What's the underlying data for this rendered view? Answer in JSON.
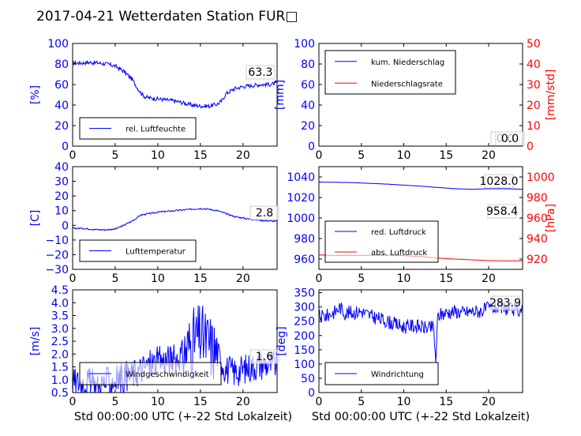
{
  "title": "2017-04-21 Wetterdaten Station FUR□",
  "xlabel": "Std 00:00:00 UTC (+-22 Std Lokalzeit)",
  "colors": {
    "blue": "#0000ff",
    "red": "#ff0000",
    "black": "#000000"
  },
  "chart_data": [
    {
      "id": "humidity",
      "type": "line",
      "ylabel": "[%]",
      "xlim": [
        0,
        24
      ],
      "ylim": [
        0,
        100
      ],
      "xticks": [
        "0",
        "5",
        "10",
        "15",
        "20"
      ],
      "yticks": [
        "0",
        "20",
        "40",
        "60",
        "80",
        "100"
      ],
      "annotations": [
        "63.3"
      ],
      "legend": "bottom-left",
      "series": [
        {
          "name": "rel. Luftfeuchte",
          "color": "#0000ff",
          "noise": 2,
          "x": [
            0,
            1,
            2,
            3,
            4,
            5,
            6,
            7,
            7.5,
            8,
            8.5,
            9,
            10,
            11,
            12,
            13,
            14,
            15,
            16,
            17,
            17.5,
            18,
            19,
            20,
            21,
            22,
            23,
            24
          ],
          "y": [
            81,
            81,
            81.5,
            81,
            80,
            78,
            73,
            65,
            58,
            52,
            48,
            47,
            46,
            45,
            44,
            42,
            40,
            39,
            39,
            41,
            44,
            51,
            56,
            58,
            59,
            60,
            60,
            61
          ]
        }
      ]
    },
    {
      "id": "precip",
      "type": "line",
      "ylabel": "[mm]",
      "ylabel2": "[mm/std]",
      "xlim": [
        0,
        24
      ],
      "ylim": [
        0,
        100
      ],
      "ylim2": [
        0,
        50
      ],
      "xticks": [
        "0",
        "5",
        "10",
        "15",
        "20"
      ],
      "yticks": [
        "0",
        "20",
        "40",
        "60",
        "80",
        "100"
      ],
      "yticks2": [
        "0",
        "10",
        "20",
        "30",
        "40",
        "50"
      ],
      "annotations": [
        "0.0",
        "0.0"
      ],
      "legend": "top-left",
      "series": [
        {
          "name": "kum. Niederschlag",
          "color": "#0000ff",
          "noise": 0,
          "x": [
            0,
            24
          ],
          "y": [
            0,
            0
          ]
        },
        {
          "name": "Niederschlagsrate",
          "color": "#ff0000",
          "noise": 0,
          "axis": "right",
          "x": [
            0,
            24
          ],
          "y": [
            0,
            0
          ]
        }
      ]
    },
    {
      "id": "temperature",
      "type": "line",
      "ylabel": "[C]",
      "xlim": [
        0,
        24
      ],
      "ylim": [
        -30,
        40
      ],
      "xticks": [
        "0",
        "5",
        "10",
        "15",
        "20"
      ],
      "yticks": [
        "−30",
        "−20",
        "−10",
        "0",
        "10",
        "20",
        "30",
        "40"
      ],
      "annotations": [
        "2.8"
      ],
      "legend": "bottom-left",
      "series": [
        {
          "name": "Lufttemperatur",
          "color": "#0000ff",
          "noise": 0.5,
          "x": [
            0,
            1,
            2,
            3,
            4,
            5,
            6,
            7,
            8,
            9,
            10,
            11,
            12,
            13,
            14,
            15,
            16,
            17,
            18,
            19,
            20,
            21,
            22,
            23,
            24
          ],
          "y": [
            -2,
            -2,
            -2.5,
            -3,
            -3,
            -2.5,
            0,
            3,
            7,
            8,
            9,
            9.5,
            10,
            10.5,
            11,
            11.5,
            11,
            10,
            8,
            6,
            5,
            4,
            3.5,
            3,
            2.8
          ]
        }
      ]
    },
    {
      "id": "pressure",
      "type": "line",
      "ylabel2": "[hPa]",
      "xlim": [
        0,
        24
      ],
      "ylim": [
        950,
        1050
      ],
      "ylim2": [
        910,
        1010
      ],
      "xticks": [
        "0",
        "5",
        "10",
        "15",
        "20"
      ],
      "yticks": [
        "960",
        "980",
        "1000",
        "1020",
        "1040"
      ],
      "yticks2": [
        "920",
        "940",
        "960",
        "980",
        "1000"
      ],
      "annotations": [
        "1028.0",
        "958.4"
      ],
      "legend": "bottom-left",
      "series": [
        {
          "name": "red. Luftdruck",
          "color": "#0000ff",
          "noise": 0.1,
          "x": [
            0,
            4,
            8,
            12,
            16,
            18,
            20,
            22,
            24
          ],
          "y": [
            1035,
            1034.5,
            1033,
            1031,
            1028.5,
            1028,
            1028.5,
            1028.5,
            1028
          ]
        },
        {
          "name": "abs. Luftdruck",
          "color": "#ff0000",
          "noise": 0.1,
          "x": [
            0,
            2,
            4,
            8,
            10,
            12,
            14,
            16,
            18,
            20,
            22,
            24
          ],
          "y": [
            964,
            963.5,
            963.5,
            963.8,
            963.3,
            962.5,
            961,
            960,
            959.3,
            958.5,
            958.2,
            958.4
          ]
        }
      ]
    },
    {
      "id": "wind_speed",
      "type": "line",
      "ylabel": "[m/s]",
      "xlim": [
        0,
        24
      ],
      "ylim": [
        0.5,
        4.5
      ],
      "xticks": [
        "0",
        "5",
        "10",
        "15",
        "20"
      ],
      "yticks": [
        "0.5",
        "1.0",
        "1.5",
        "2.0",
        "2.5",
        "3.0",
        "3.5",
        "4.0",
        "4.5"
      ],
      "annotations": [
        "1.6"
      ],
      "legend": "bottom-left",
      "series": [
        {
          "name": "Windgeschwindigkeit",
          "color": "#0000ff",
          "noise": 0.6,
          "x": [
            0,
            2,
            3,
            4,
            5,
            6,
            7,
            8,
            9,
            10,
            11,
            12,
            13,
            14,
            15,
            16,
            17,
            18,
            19,
            20,
            21,
            22,
            23,
            24
          ],
          "y": [
            0.9,
            0.9,
            0.7,
            0.9,
            1.0,
            1.1,
            1.2,
            1.4,
            1.6,
            1.7,
            1.8,
            1.8,
            2.0,
            2.5,
            2.7,
            2.4,
            2.0,
            1.4,
            1.3,
            1.4,
            1.5,
            1.6,
            1.6,
            1.6
          ]
        }
      ]
    },
    {
      "id": "wind_direction",
      "type": "line",
      "ylabel": "[deg]",
      "xlim": [
        0,
        24
      ],
      "ylim": [
        0,
        360
      ],
      "xticks": [
        "0",
        "5",
        "10",
        "15",
        "20"
      ],
      "yticks": [
        "0",
        "50",
        "100",
        "150",
        "200",
        "250",
        "300",
        "350"
      ],
      "annotations": [
        "283.9"
      ],
      "legend": "bottom-left",
      "series": [
        {
          "name": "Windrichtung",
          "color": "#0000ff",
          "noise": 25,
          "x": [
            0,
            1,
            2,
            2.5,
            3,
            4,
            5,
            6,
            7,
            8,
            9,
            10,
            11,
            12,
            13,
            13.5,
            13.8,
            14,
            15,
            16,
            17,
            18,
            19,
            20,
            21,
            22,
            23,
            24
          ],
          "y": [
            265,
            270,
            285,
            300,
            280,
            280,
            285,
            270,
            260,
            250,
            240,
            230,
            235,
            230,
            225,
            230,
            100,
            270,
            280,
            285,
            280,
            285,
            285,
            295,
            300,
            295,
            290,
            290
          ]
        }
      ]
    }
  ]
}
